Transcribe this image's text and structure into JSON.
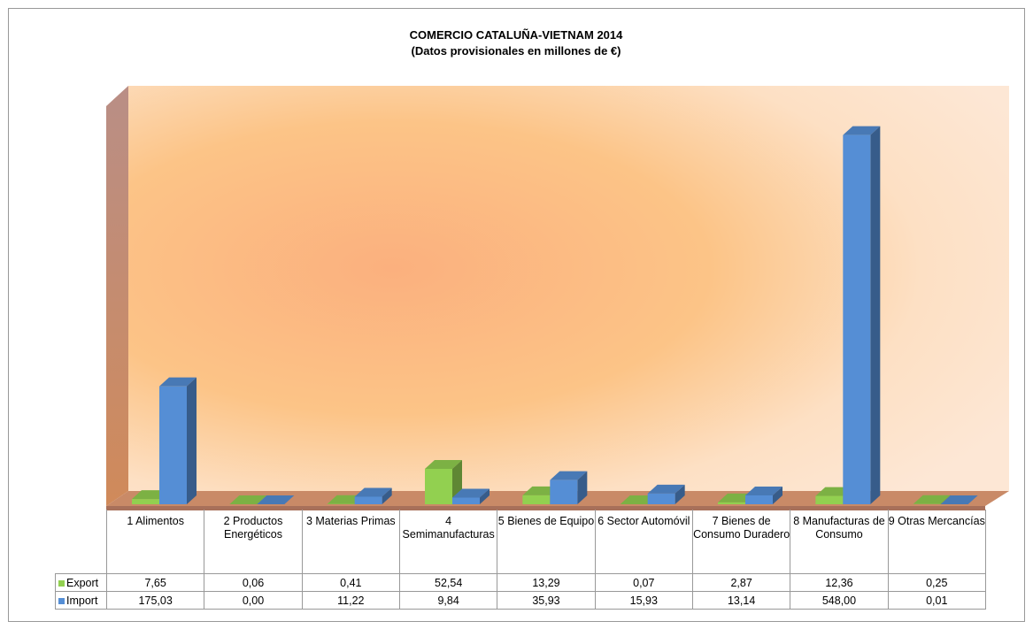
{
  "chart_data": {
    "type": "bar3d",
    "title": "COMERCIO CATALUÑA-VIETNAM 2014",
    "subtitle": "(Datos provisionales en millones de €)",
    "categories": [
      "1 Alimentos",
      "2 Productos Energéticos",
      "3 Materias Primas",
      "4 Semimanufacturas",
      "5 Bienes de Equipo",
      "6 Sector Automóvil",
      "7 Bienes de Consumo Duradero",
      "8 Manufacturas de Consumo",
      "9 Otras Mercancías"
    ],
    "series": [
      {
        "name": "Export",
        "color": "#92d050",
        "values": [
          7.65,
          0.06,
          0.41,
          52.54,
          13.29,
          0.07,
          2.87,
          12.36,
          0.25
        ],
        "value_labels": [
          "7,65",
          "0,06",
          "0,41",
          "52,54",
          "13,29",
          "0,07",
          "2,87",
          "12,36",
          "0,25"
        ]
      },
      {
        "name": "Import",
        "color": "#558ed5",
        "values": [
          175.03,
          0.0,
          11.22,
          9.84,
          35.93,
          15.93,
          13.14,
          548.0,
          0.01
        ],
        "value_labels": [
          "175,03",
          "0,00",
          "11,22",
          "9,84",
          "35,93",
          "15,93",
          "13,14",
          "548,00",
          "0,01"
        ]
      }
    ],
    "ylim": [
      0,
      600
    ]
  }
}
